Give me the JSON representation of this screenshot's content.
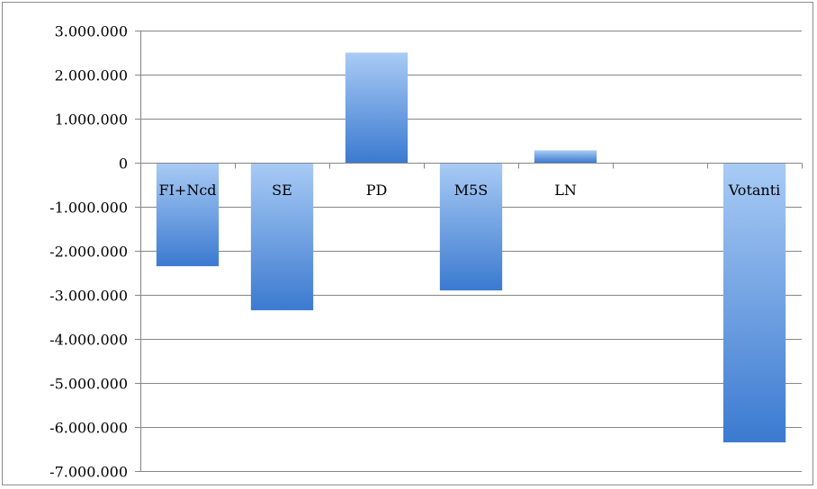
{
  "chart_data": {
    "type": "bar",
    "categories": [
      "FI+Ncd",
      "SE",
      "PD",
      "M5S",
      "LN",
      "",
      "Votanti"
    ],
    "values": [
      -2350000,
      -3350000,
      2500000,
      -2900000,
      280000,
      null,
      -6350000
    ],
    "ytick_labels": [
      "3.000.000",
      "2.000.000",
      "1.000.000",
      "0",
      "-1.000.000",
      "-2.000.000",
      "-3.000.000",
      "-4.000.000",
      "-5.000.000",
      "-6.000.000",
      "-7.000.000"
    ],
    "ytick_values": [
      3000000,
      2000000,
      1000000,
      0,
      -1000000,
      -2000000,
      -3000000,
      -4000000,
      -5000000,
      -6000000,
      -7000000
    ],
    "ylim": [
      -7000000,
      3000000
    ],
    "grid": true,
    "legend": "none",
    "colors": {
      "bar_light": "#a9cbf5",
      "bar_dark": "#3b7ad0",
      "grid": "#868686",
      "axis": "#868686"
    }
  }
}
